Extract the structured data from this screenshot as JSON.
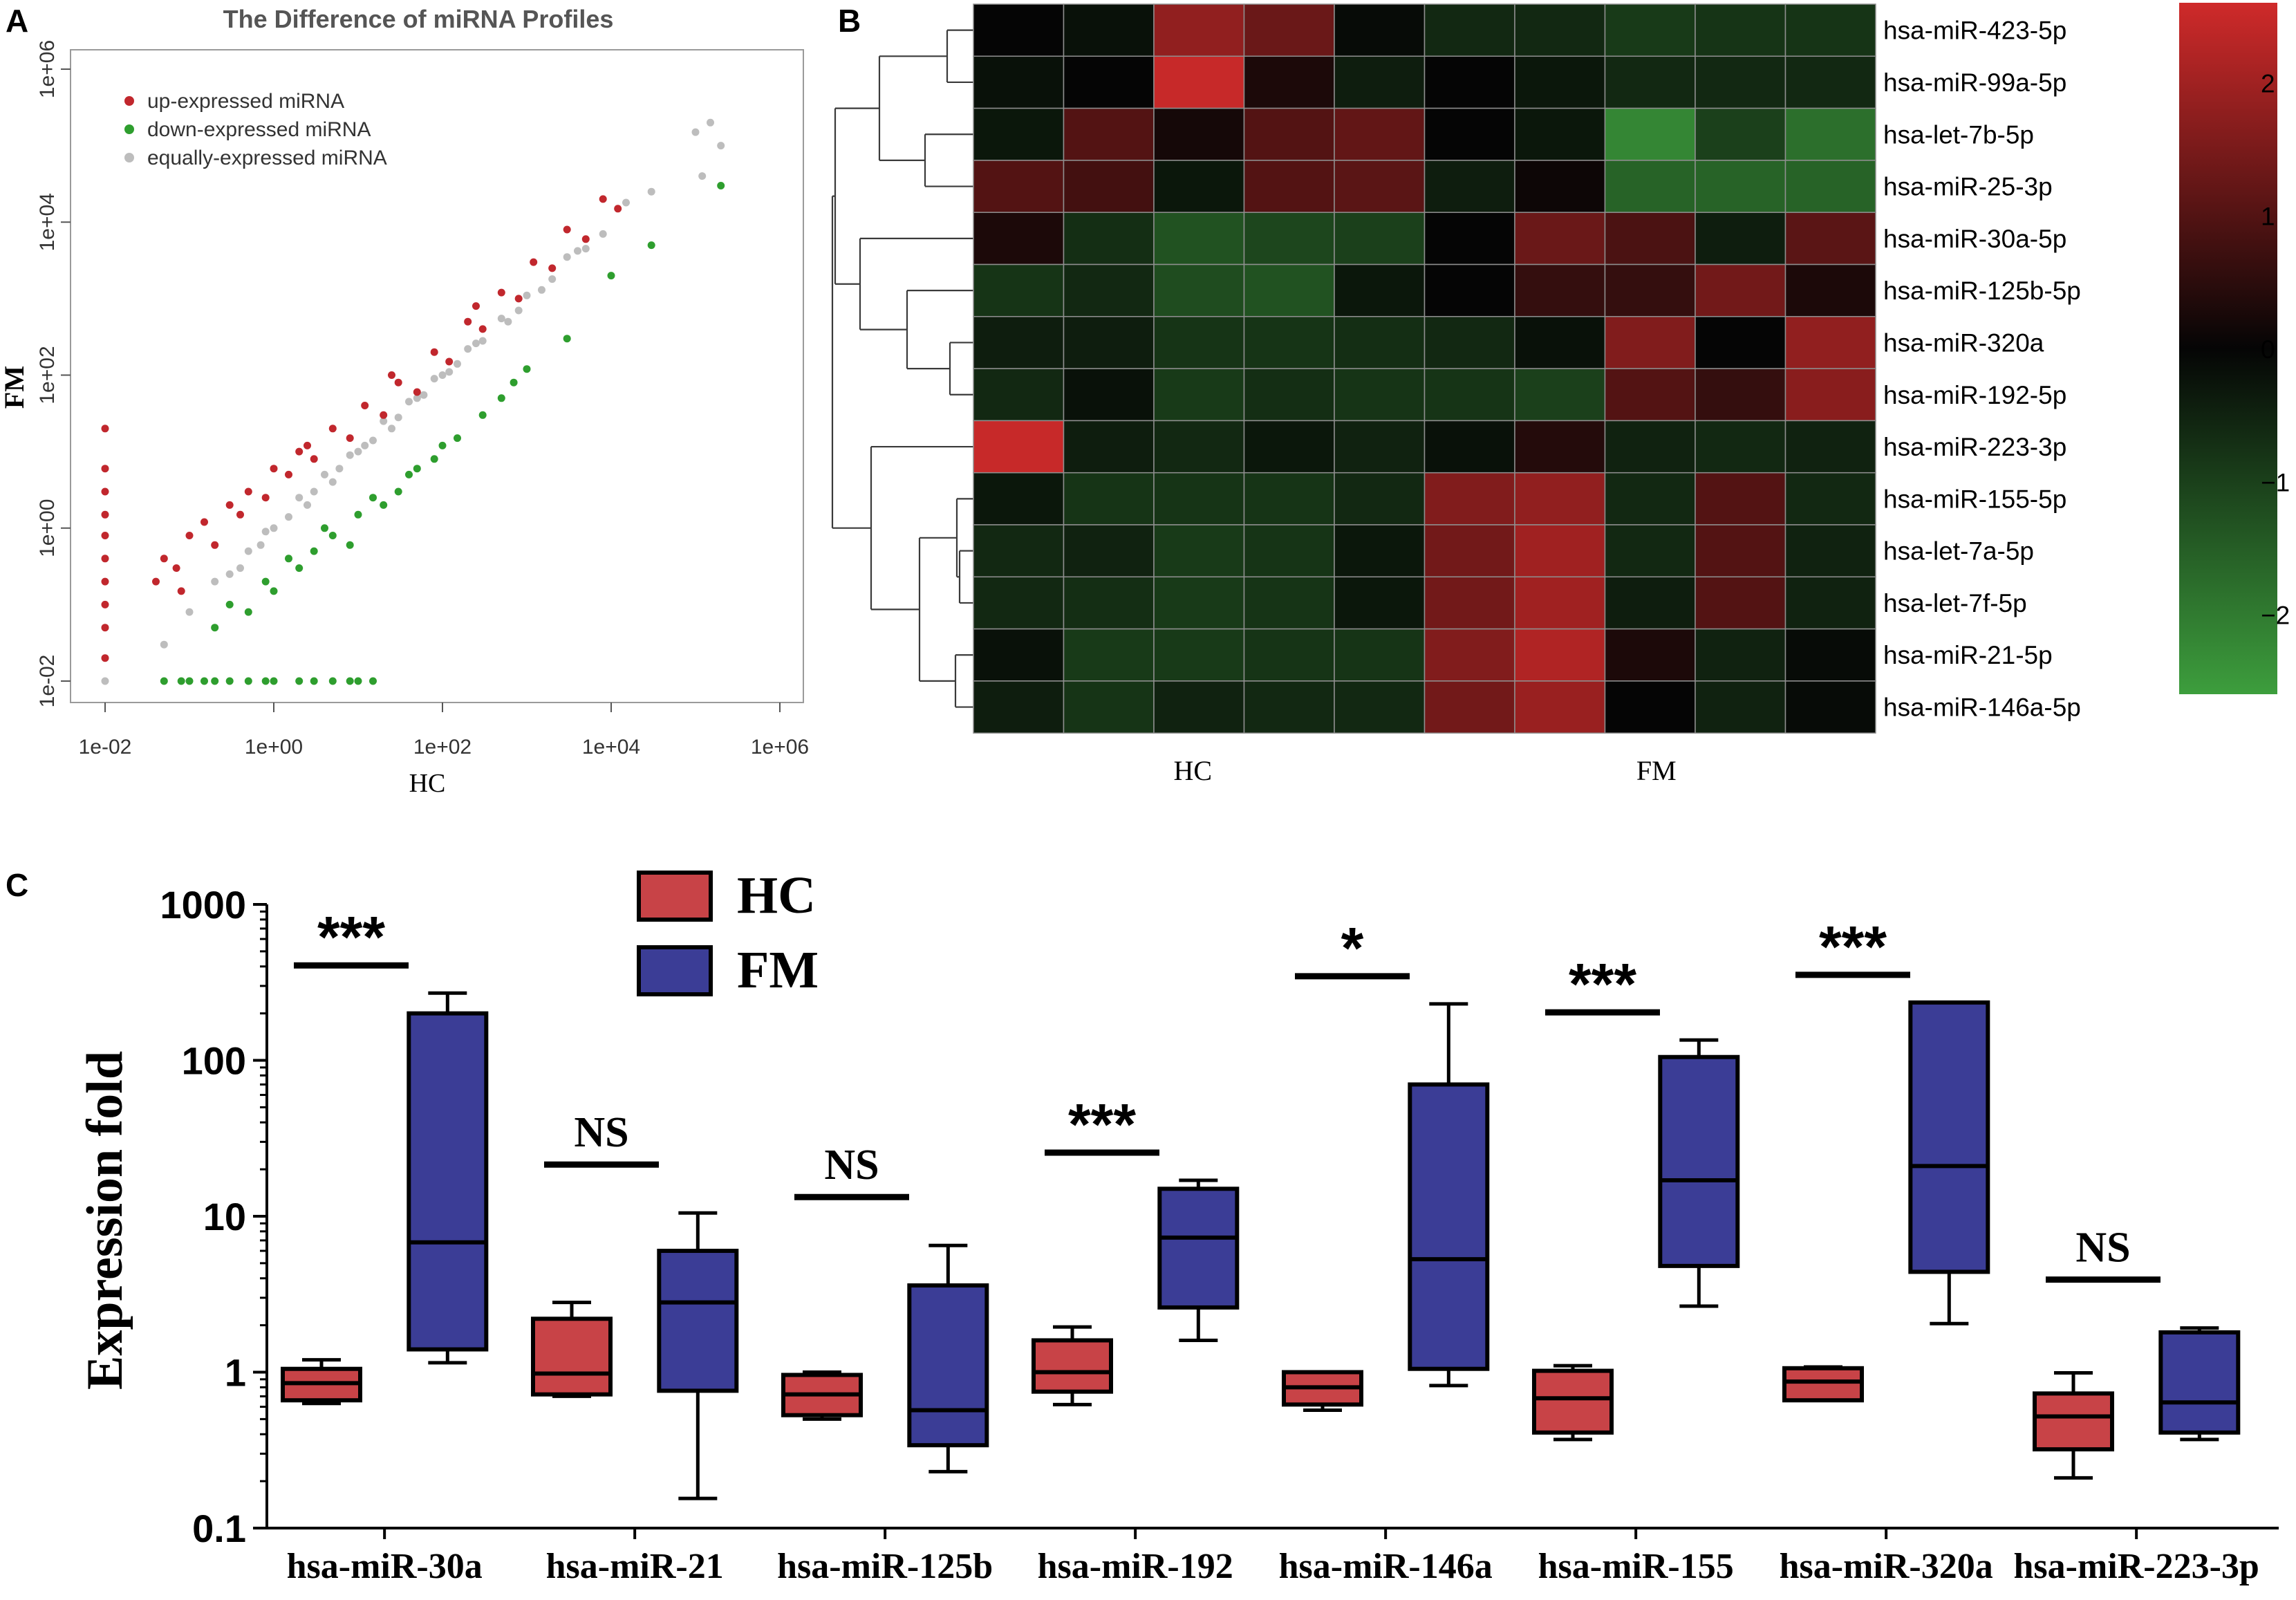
{
  "panels": {
    "a": "A",
    "b": "B",
    "c": "C"
  },
  "colors": {
    "up": "#c1272d",
    "down": "#2e9e2e",
    "equal": "#bdbdbd",
    "hc_box": "#c84347",
    "fm_box": "#3b3d96",
    "heat_high": "#cf2a2a",
    "heat_mid": "#050505",
    "heat_low": "#3d9e3d"
  },
  "chart_data": [
    {
      "id": "scatter",
      "type": "scatter",
      "title": "The Difference of miRNA Profiles",
      "xlabel": "HC",
      "ylabel": "FM",
      "x_scale": "log10",
      "y_scale": "log10",
      "xlim": [
        0.006,
        2000000
      ],
      "ylim": [
        0.006,
        2000000
      ],
      "xticks": [
        "1e-02",
        "1e+00",
        "1e+02",
        "1e+04",
        "1e+06"
      ],
      "yticks": [
        "1e-02",
        "1e+00",
        "1e+02",
        "1e+04",
        "1e+06"
      ],
      "legend": [
        "up-expressed miRNA",
        "down-expressed miRNA",
        "equally-expressed miRNA"
      ],
      "legend_position": "top-left",
      "series": [
        {
          "name": "up-expressed miRNA",
          "points": [
            [
              0.01,
              0.02
            ],
            [
              0.01,
              0.05
            ],
            [
              0.01,
              0.1
            ],
            [
              0.01,
              0.2
            ],
            [
              0.01,
              0.4
            ],
            [
              0.01,
              0.8
            ],
            [
              0.01,
              1.5
            ],
            [
              0.01,
              3
            ],
            [
              0.01,
              6
            ],
            [
              0.01,
              20
            ],
            [
              0.04,
              0.2
            ],
            [
              0.05,
              0.4
            ],
            [
              0.07,
              0.3
            ],
            [
              0.1,
              0.8
            ],
            [
              0.15,
              1.2
            ],
            [
              0.2,
              0.6
            ],
            [
              0.3,
              2
            ],
            [
              0.5,
              3
            ],
            [
              0.8,
              2.5
            ],
            [
              1,
              6
            ],
            [
              1.5,
              5
            ],
            [
              2,
              10
            ],
            [
              3,
              8
            ],
            [
              5,
              20
            ],
            [
              8,
              15
            ],
            [
              12,
              40
            ],
            [
              20,
              30
            ],
            [
              30,
              80
            ],
            [
              50,
              60
            ],
            [
              80,
              200
            ],
            [
              120,
              150
            ],
            [
              200,
              500
            ],
            [
              300,
              400
            ],
            [
              500,
              1200
            ],
            [
              800,
              1000
            ],
            [
              1200,
              3000
            ],
            [
              2000,
              2500
            ],
            [
              3000,
              8000
            ],
            [
              5000,
              6000
            ],
            [
              8000,
              20000
            ],
            [
              12000,
              15000
            ],
            [
              0.08,
              0.15
            ],
            [
              0.4,
              1.5
            ],
            [
              2.5,
              12
            ],
            [
              25,
              100
            ],
            [
              250,
              800
            ]
          ]
        },
        {
          "name": "down-expressed miRNA",
          "points": [
            [
              0.05,
              0.01
            ],
            [
              0.08,
              0.01
            ],
            [
              0.1,
              0.01
            ],
            [
              0.15,
              0.01
            ],
            [
              0.2,
              0.01
            ],
            [
              0.3,
              0.01
            ],
            [
              0.5,
              0.01
            ],
            [
              0.8,
              0.01
            ],
            [
              1,
              0.01
            ],
            [
              2,
              0.01
            ],
            [
              3,
              0.01
            ],
            [
              5,
              0.01
            ],
            [
              8,
              0.01
            ],
            [
              10,
              0.01
            ],
            [
              15,
              0.01
            ],
            [
              0.2,
              0.05
            ],
            [
              0.3,
              0.1
            ],
            [
              0.5,
              0.08
            ],
            [
              0.8,
              0.2
            ],
            [
              1,
              0.15
            ],
            [
              2,
              0.3
            ],
            [
              3,
              0.5
            ],
            [
              5,
              0.8
            ],
            [
              8,
              0.6
            ],
            [
              10,
              1.5
            ],
            [
              20,
              2
            ],
            [
              30,
              3
            ],
            [
              50,
              6
            ],
            [
              80,
              8
            ],
            [
              150,
              15
            ],
            [
              300,
              30
            ],
            [
              500,
              50
            ],
            [
              1000,
              120
            ],
            [
              3000,
              300
            ],
            [
              10000,
              2000
            ],
            [
              30000,
              5000
            ],
            [
              200000,
              30000
            ],
            [
              1.5,
              0.4
            ],
            [
              4,
              1
            ],
            [
              15,
              2.5
            ],
            [
              40,
              5
            ],
            [
              100,
              12
            ],
            [
              700,
              80
            ]
          ]
        },
        {
          "name": "equally-expressed miRNA",
          "points": [
            [
              0.01,
              0.01
            ],
            [
              0.05,
              0.03
            ],
            [
              0.1,
              0.08
            ],
            [
              0.2,
              0.2
            ],
            [
              0.3,
              0.25
            ],
            [
              0.5,
              0.5
            ],
            [
              0.8,
              0.9
            ],
            [
              1,
              1
            ],
            [
              1.5,
              1.4
            ],
            [
              2,
              2.5
            ],
            [
              3,
              3
            ],
            [
              4,
              5
            ],
            [
              6,
              6
            ],
            [
              8,
              9
            ],
            [
              10,
              10
            ],
            [
              15,
              14
            ],
            [
              20,
              25
            ],
            [
              30,
              28
            ],
            [
              40,
              45
            ],
            [
              60,
              55
            ],
            [
              80,
              90
            ],
            [
              100,
              100
            ],
            [
              150,
              140
            ],
            [
              200,
              220
            ],
            [
              300,
              280
            ],
            [
              500,
              550
            ],
            [
              800,
              700
            ],
            [
              1000,
              1100
            ],
            [
              2000,
              1800
            ],
            [
              3000,
              3500
            ],
            [
              5000,
              4500
            ],
            [
              8000,
              7000
            ],
            [
              15000,
              18000
            ],
            [
              30000,
              25000
            ],
            [
              100000,
              150000
            ],
            [
              150000,
              200000
            ],
            [
              200000,
              100000
            ],
            [
              120000,
              40000
            ],
            [
              0.4,
              0.3
            ],
            [
              0.7,
              0.6
            ],
            [
              2.5,
              2
            ],
            [
              5,
              4
            ],
            [
              12,
              12
            ],
            [
              25,
              20
            ],
            [
              50,
              50
            ],
            [
              120,
              110
            ],
            [
              250,
              260
            ],
            [
              600,
              500
            ],
            [
              1500,
              1300
            ],
            [
              4000,
              4200
            ]
          ]
        }
      ]
    },
    {
      "id": "heatmap",
      "type": "heatmap",
      "group_labels": [
        "HC",
        "FM"
      ],
      "rows": [
        "hsa-miR-423-5p",
        "hsa-miR-99a-5p",
        "hsa-let-7b-5p",
        "hsa-miR-25-3p",
        "hsa-miR-30a-5p",
        "hsa-miR-125b-5p",
        "hsa-miR-320a",
        "hsa-miR-192-5p",
        "hsa-miR-223-3p",
        "hsa-miR-155-5p",
        "hsa-let-7a-5p",
        "hsa-let-7f-5p",
        "hsa-miR-21-5p",
        "hsa-miR-146a-5p"
      ],
      "columns": 10,
      "values": [
        [
          0.0,
          -0.2,
          1.8,
          1.3,
          -0.1,
          -0.6,
          -0.6,
          -0.9,
          -0.8,
          -0.8
        ],
        [
          -0.2,
          0.0,
          2.5,
          0.3,
          -0.4,
          0.0,
          -0.3,
          -0.6,
          -0.6,
          -0.6
        ],
        [
          -0.3,
          1.0,
          0.2,
          1.0,
          1.2,
          0.0,
          -0.3,
          -2.2,
          -1.0,
          -1.8
        ],
        [
          1.0,
          0.8,
          -0.3,
          1.0,
          1.1,
          -0.4,
          0.1,
          -1.6,
          -1.6,
          -1.6
        ],
        [
          0.3,
          -0.7,
          -1.3,
          -1.1,
          -1.0,
          0.0,
          1.3,
          0.9,
          -0.4,
          1.1
        ],
        [
          -0.8,
          -0.6,
          -1.2,
          -1.3,
          -0.3,
          0.0,
          0.6,
          0.6,
          1.4,
          0.3
        ],
        [
          -0.4,
          -0.4,
          -0.8,
          -0.8,
          -0.7,
          -0.6,
          -0.2,
          1.6,
          0.0,
          1.8
        ],
        [
          -0.6,
          -0.2,
          -0.9,
          -0.7,
          -0.8,
          -0.8,
          -1.0,
          1.0,
          0.6,
          1.7
        ],
        [
          2.5,
          -0.4,
          -0.6,
          -0.3,
          -0.5,
          -0.2,
          0.4,
          -0.5,
          -0.6,
          -0.5
        ],
        [
          -0.3,
          -0.8,
          -0.8,
          -0.8,
          -0.6,
          1.6,
          1.8,
          -0.6,
          1.0,
          -0.6
        ],
        [
          -0.6,
          -0.5,
          -0.9,
          -0.8,
          -0.3,
          1.4,
          2.0,
          -0.6,
          1.0,
          -0.5
        ],
        [
          -0.6,
          -0.7,
          -0.9,
          -0.8,
          -0.3,
          1.4,
          2.0,
          -0.4,
          1.0,
          -0.5
        ],
        [
          -0.2,
          -0.9,
          -0.9,
          -0.8,
          -0.8,
          1.6,
          2.2,
          0.3,
          -0.5,
          -0.1
        ],
        [
          -0.4,
          -0.8,
          -0.5,
          -0.6,
          -0.6,
          1.4,
          1.9,
          0.0,
          -0.5,
          -0.1
        ]
      ],
      "colorbar_ticks": [
        "2",
        "1",
        "0",
        "−1",
        "−2"
      ],
      "colorbar_range": [
        -2.6,
        2.6
      ]
    },
    {
      "id": "boxplot",
      "type": "box",
      "ylabel": "Expression fold",
      "y_scale": "log10",
      "ylim": [
        0.1,
        1000
      ],
      "yticks": [
        "0.1",
        "1",
        "10",
        "100",
        "1000"
      ],
      "legend": [
        "HC",
        "FM"
      ],
      "categories": [
        "hsa-miR-30a",
        "hsa-miR-21",
        "hsa-miR-125b",
        "hsa-miR-192",
        "hsa-miR-146a",
        "hsa-miR-155",
        "hsa-miR-320a",
        "hsa-miR-223-3p"
      ],
      "significance": [
        "***",
        "NS",
        "NS",
        "***",
        "*",
        "***",
        "***",
        "NS"
      ],
      "series": [
        {
          "name": "HC",
          "boxes": [
            {
              "min": 0.63,
              "q1": 0.66,
              "median": 0.85,
              "q3": 1.05,
              "max": 1.2
            },
            {
              "min": 0.7,
              "q1": 0.72,
              "median": 0.98,
              "q3": 2.2,
              "max": 2.8
            },
            {
              "min": 0.5,
              "q1": 0.53,
              "median": 0.72,
              "q3": 0.96,
              "max": 1.0
            },
            {
              "min": 0.62,
              "q1": 0.75,
              "median": 1.0,
              "q3": 1.6,
              "max": 1.95
            },
            {
              "min": 0.57,
              "q1": 0.62,
              "median": 0.8,
              "q3": 1.0,
              "max": 1.0
            },
            {
              "min": 0.37,
              "q1": 0.41,
              "median": 0.68,
              "q3": 1.02,
              "max": 1.1
            },
            {
              "min": 0.66,
              "q1": 0.66,
              "median": 0.87,
              "q3": 1.06,
              "max": 1.08
            },
            {
              "min": 0.21,
              "q1": 0.32,
              "median": 0.52,
              "q3": 0.73,
              "max": 0.99
            }
          ]
        },
        {
          "name": "FM",
          "boxes": [
            {
              "min": 1.15,
              "q1": 1.4,
              "median": 6.8,
              "q3": 200,
              "max": 270
            },
            {
              "min": 0.155,
              "q1": 0.76,
              "median": 2.8,
              "q3": 6.0,
              "max": 10.5
            },
            {
              "min": 0.23,
              "q1": 0.34,
              "median": 0.57,
              "q3": 3.6,
              "max": 6.5
            },
            {
              "min": 1.6,
              "q1": 2.6,
              "median": 7.3,
              "q3": 15,
              "max": 17
            },
            {
              "min": 0.82,
              "q1": 1.05,
              "median": 5.3,
              "q3": 70,
              "max": 230
            },
            {
              "min": 2.65,
              "q1": 4.8,
              "median": 17,
              "q3": 105,
              "max": 135
            },
            {
              "min": 2.05,
              "q1": 4.4,
              "median": 21,
              "q3": 235,
              "max": 235
            },
            {
              "min": 0.37,
              "q1": 0.41,
              "median": 0.64,
              "q3": 1.8,
              "max": 1.92
            }
          ]
        }
      ]
    }
  ]
}
